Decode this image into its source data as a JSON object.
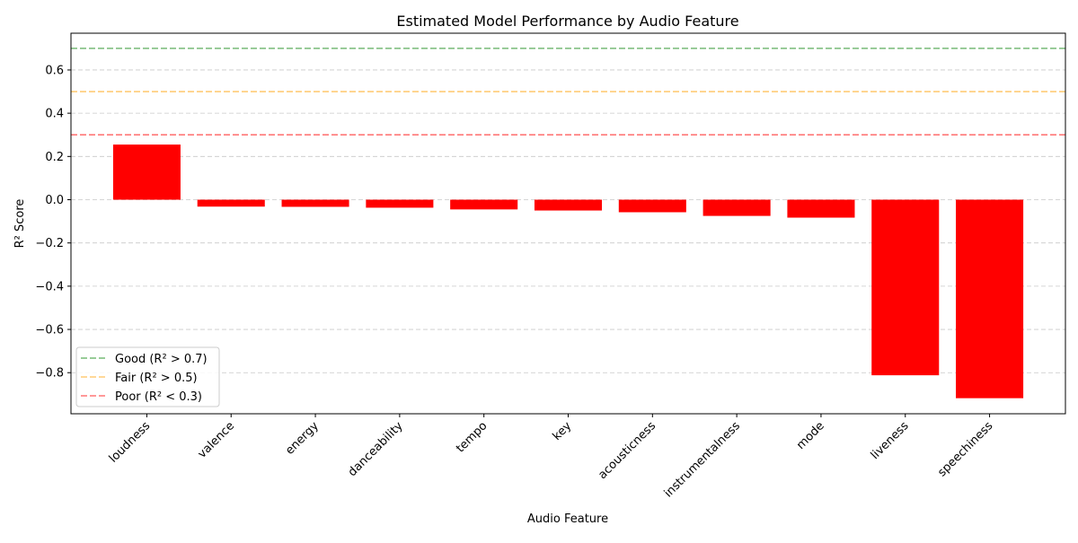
{
  "chart_data": {
    "type": "bar",
    "title": "Estimated Model Performance by Audio Feature",
    "xlabel": "Audio Feature",
    "ylabel": "R² Score",
    "categories": [
      "loudness",
      "valence",
      "energy",
      "danceability",
      "tempo",
      "key",
      "acousticness",
      "instrumentalness",
      "mode",
      "liveness",
      "speechiness"
    ],
    "values": [
      0.255,
      -0.032,
      -0.033,
      -0.037,
      -0.045,
      -0.05,
      -0.058,
      -0.075,
      -0.083,
      -0.812,
      -0.918
    ],
    "ylim": [
      -0.99,
      0.77
    ],
    "yticks": [
      -0.8,
      -0.6,
      -0.4,
      -0.2,
      0.0,
      0.2,
      0.4,
      0.6
    ],
    "ytick_labels": [
      "−0.8",
      "−0.6",
      "−0.4",
      "−0.2",
      "0.0",
      "0.2",
      "0.4",
      "0.6"
    ],
    "grid": "y-dashed",
    "bar_color": "#ff0000",
    "thresholds": [
      {
        "label": "Good (R² > 0.7)",
        "value": 0.7,
        "color": "#77bb77"
      },
      {
        "label": "Fair (R² > 0.5)",
        "value": 0.5,
        "color": "#ffcc77"
      },
      {
        "label": "Poor (R² < 0.3)",
        "value": 0.3,
        "color": "#ff7777"
      }
    ],
    "legend_position": "lower-left"
  }
}
